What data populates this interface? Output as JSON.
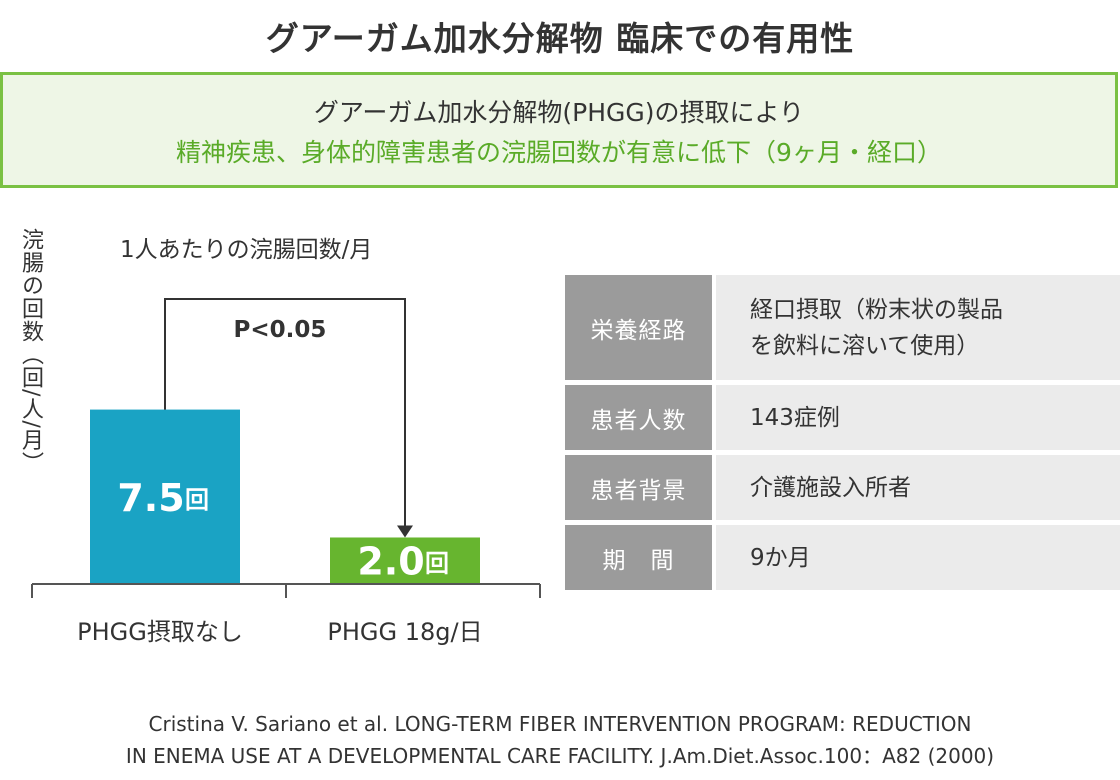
{
  "title": "グアーガム加水分解物 臨床での有用性",
  "summary": {
    "line1": "グアーガム加水分解物(PHGG)の摂取により",
    "line2": "精神疾患、身体的障害患者の浣腸回数が有意に低下（9ヶ月・経口）"
  },
  "chart_data": {
    "type": "bar",
    "title": "1人あたりの浣腸回数/月",
    "ylabel": "浣腸の回数（回/人/月）",
    "categories": [
      "PHGG摂取なし",
      "PHGG 18g/日"
    ],
    "values": [
      7.5,
      2.0
    ],
    "value_labels": [
      "7.5",
      "2.0"
    ],
    "value_unit": "回",
    "colors": [
      "#1aa3c4",
      "#67b52f"
    ],
    "ylim": [
      0,
      8.6
    ],
    "significance": "P<0.05",
    "grid": false
  },
  "info_table": [
    {
      "label": "栄養経路",
      "value": "経口摂取（粉末状の製品\nを飲料に溶いて使用）"
    },
    {
      "label": "患者人数",
      "value": "143症例"
    },
    {
      "label": "患者背景",
      "value": "介護施設入所者"
    },
    {
      "label": "期　間",
      "value": "9か月"
    }
  ],
  "citation": {
    "line1": "Cristina V. Sariano et al. LONG-TERM FIBER INTERVENTION PROGRAM: REDUCTION",
    "line2": "IN ENEMA USE AT A DEVELOPMENTAL CARE FACILITY. J.Am.Diet.Assoc.100：A82 (2000)"
  }
}
